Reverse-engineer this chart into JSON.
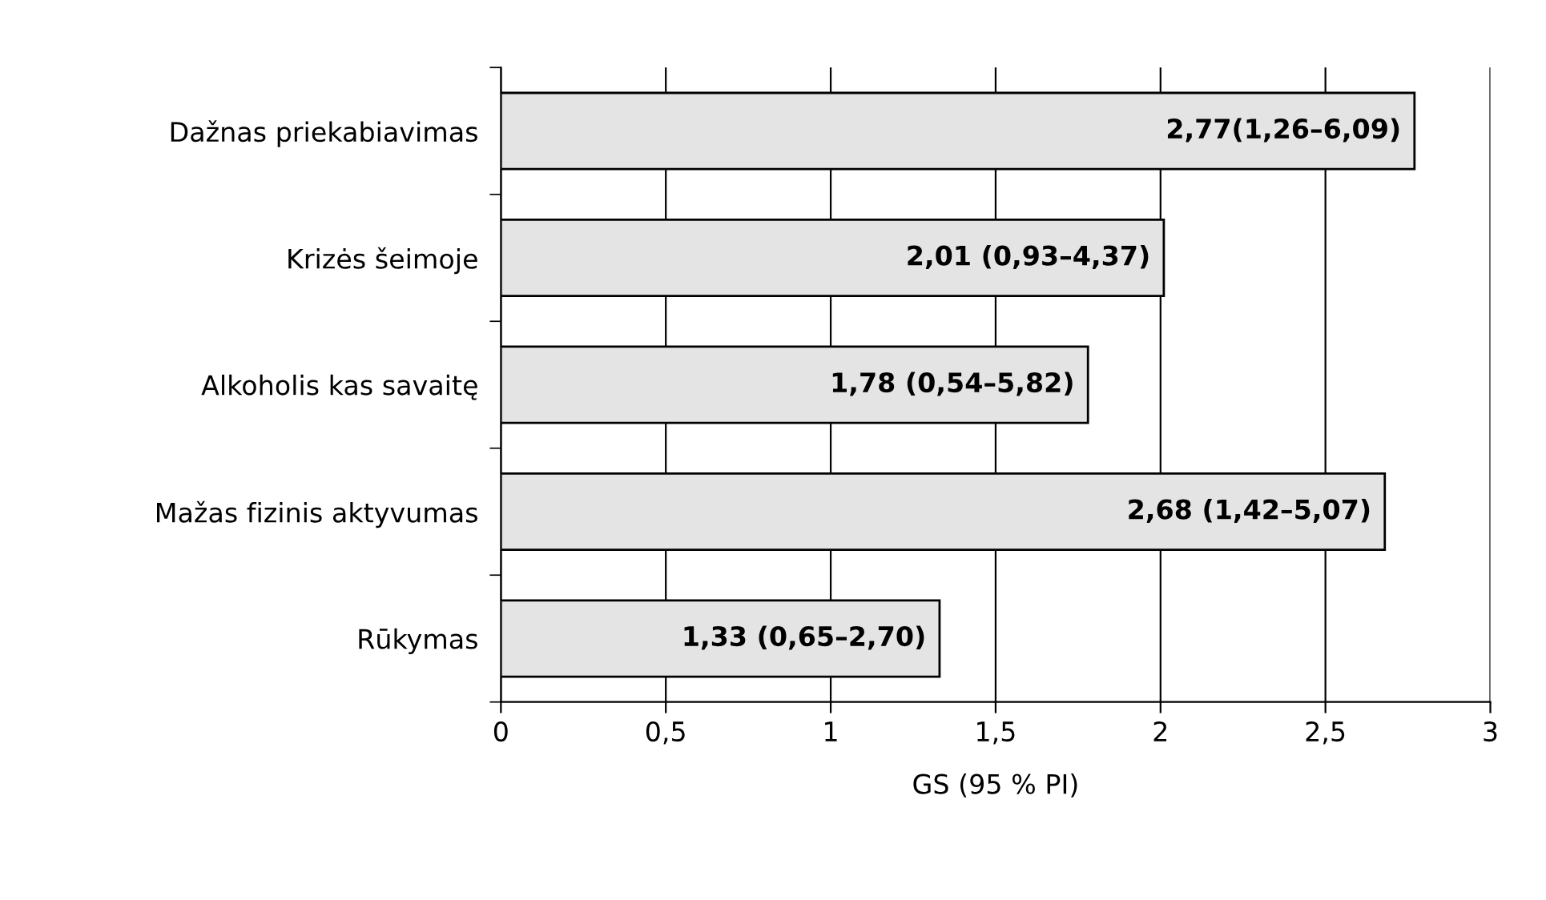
{
  "chart_data": {
    "type": "bar",
    "orientation": "horizontal",
    "xlabel": "GS (95 % PI)",
    "categories": [
      "Dažnas priekabiavimas",
      "Krizės šeimoje",
      "Alkoholis kas savaitę",
      "Mažas fizinis aktyvumas",
      "Rūkymas"
    ],
    "values": [
      2.77,
      2.01,
      1.78,
      2.68,
      1.33
    ],
    "value_labels": [
      "2,77(1,26–6,09)",
      "2,01 (0,93–4,37)",
      "1,78 (0,54–5,82)",
      "2,68 (1,42–5,07)",
      "1,33 (0,65–2,70)"
    ],
    "color": "#e4e4e4",
    "xlim": [
      0,
      3
    ],
    "xticks": [
      0,
      {
        "value": 0.5,
        "label": "0,5"
      },
      1,
      {
        "value": 1.5,
        "label": "1,5"
      },
      2,
      {
        "value": 2.5,
        "label": "2,5"
      },
      3
    ],
    "grid": "x"
  }
}
